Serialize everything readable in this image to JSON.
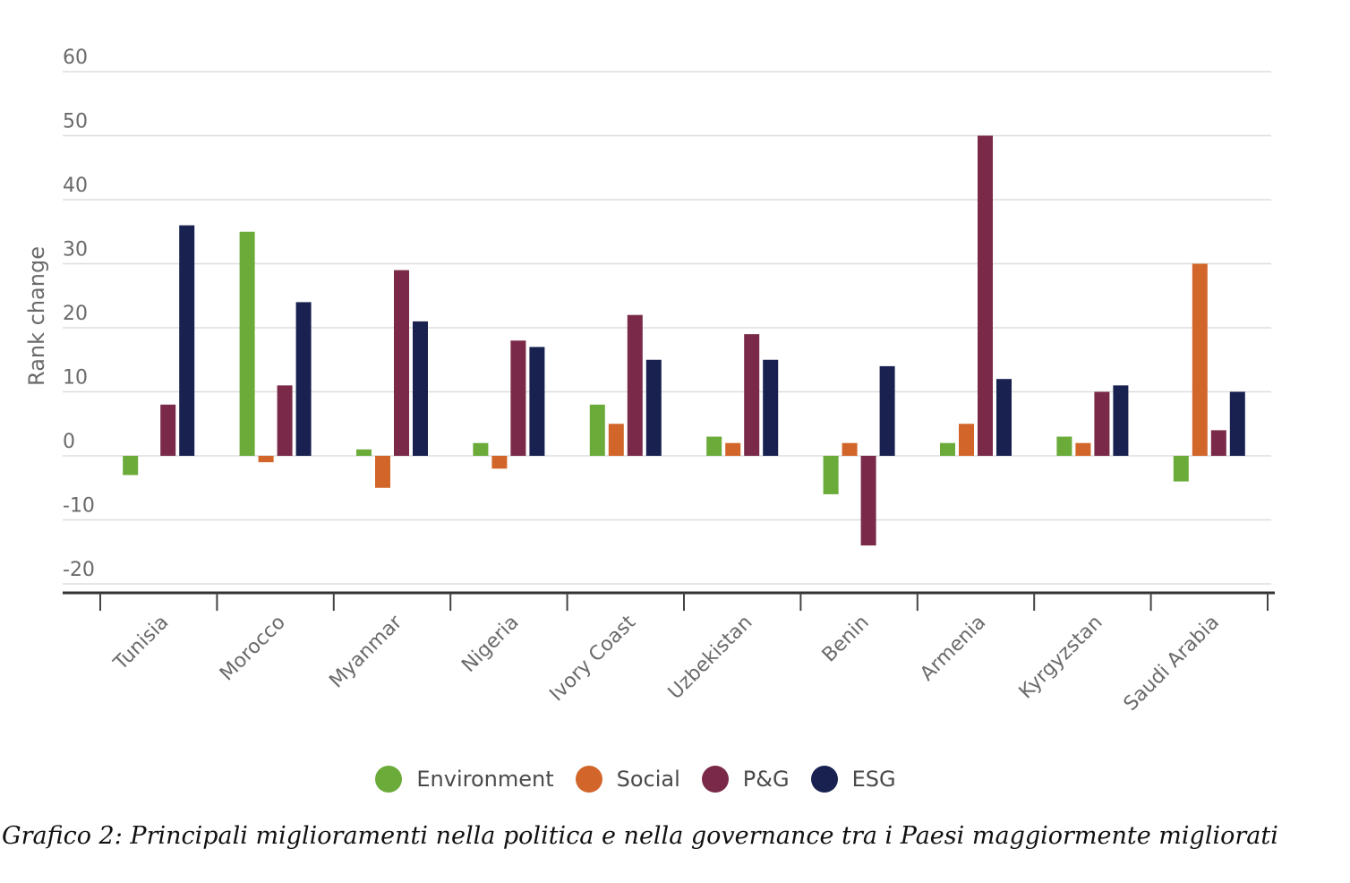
{
  "chart_data": {
    "type": "bar",
    "ylabel": "Rank change",
    "ylim": [
      -20,
      60
    ],
    "yticks": [
      60,
      50,
      40,
      30,
      20,
      10,
      0,
      -10,
      -20
    ],
    "grid": true,
    "legend_position": "bottom-center",
    "categories": [
      "Tunisia",
      "Morocco",
      "Myanmar",
      "Nigeria",
      "Ivory Coast",
      "Uzbekistan",
      "Benin",
      "Armenia",
      "Kyrgyzstan",
      "Saudi Arabia"
    ],
    "series": [
      {
        "name": "Environment",
        "color": "#6aab3a",
        "values": [
          -3,
          35,
          1,
          2,
          8,
          3,
          -6,
          2,
          3,
          -4
        ]
      },
      {
        "name": "Social",
        "color": "#d2662a",
        "values": [
          0,
          -1,
          -5,
          -2,
          5,
          2,
          2,
          5,
          2,
          30
        ]
      },
      {
        "name": "P&G",
        "color": "#7a2a48",
        "values": [
          8,
          11,
          29,
          18,
          22,
          19,
          -14,
          50,
          10,
          4
        ]
      },
      {
        "name": "ESG",
        "color": "#18214f",
        "values": [
          36,
          24,
          21,
          17,
          15,
          15,
          14,
          12,
          11,
          10
        ]
      }
    ]
  },
  "caption": "Grafico 2: Principali miglioramenti nella politica e nella governance tra i Paesi maggiormente migliorati"
}
